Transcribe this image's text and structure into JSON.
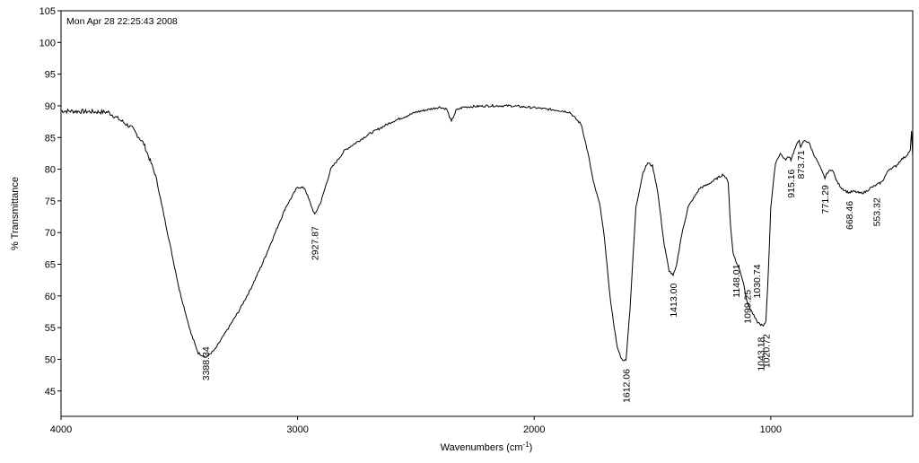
{
  "chart_data": {
    "type": "line",
    "timestamp": "Mon Apr 28 22:25:43 2008",
    "xlabel": "Wavenumbers (cm-1)",
    "xlabel_main": "Wavenumbers (cm",
    "xlabel_sup": "-1",
    "xlabel_end": ")",
    "ylabel": "% Transmittance",
    "xlim": [
      4000,
      400
    ],
    "ylim": [
      41,
      105
    ],
    "x_ticks": [
      4000,
      3000,
      2000,
      1000
    ],
    "y_ticks": [
      105,
      100,
      95,
      90,
      85,
      80,
      75,
      70,
      65,
      60,
      55,
      50,
      45
    ],
    "grid": false,
    "color": "#000000",
    "x": [
      4000,
      3800,
      3700,
      3650,
      3600,
      3550,
      3500,
      3450,
      3420,
      3388.34,
      3350,
      3300,
      3250,
      3200,
      3150,
      3100,
      3050,
      3000,
      2970,
      2950,
      2927.87,
      2900,
      2880,
      2860,
      2800,
      2700,
      2600,
      2500,
      2400,
      2370,
      2350,
      2330,
      2300,
      2200,
      2100,
      2000,
      1900,
      1850,
      1800,
      1770,
      1750,
      1720,
      1700,
      1680,
      1650,
      1630,
      1612.06,
      1595,
      1570,
      1540,
      1520,
      1500,
      1480,
      1450,
      1430,
      1413.0,
      1400,
      1380,
      1350,
      1300,
      1270,
      1250,
      1200,
      1180,
      1170,
      1160,
      1148.01,
      1130,
      1115,
      1099.25,
      1080,
      1060,
      1043.18,
      1030.74,
      1020.72,
      1010,
      1000,
      980,
      960,
      940,
      920,
      915.16,
      900,
      880,
      873.71,
      860,
      840,
      820,
      800,
      780,
      771.29,
      760,
      740,
      720,
      700,
      680,
      668.46,
      650,
      620,
      600,
      580,
      553.32,
      530,
      500,
      470,
      450,
      430,
      410,
      405,
      400
    ],
    "values": [
      89.2,
      89.0,
      86.5,
      84.0,
      79.0,
      70.0,
      61.0,
      54.0,
      51.0,
      50.3,
      51.5,
      54.5,
      57.5,
      61.0,
      65.0,
      69.5,
      74.0,
      77.2,
      77.0,
      75.0,
      72.8,
      75.0,
      77.5,
      80.0,
      83.0,
      85.5,
      87.5,
      89.0,
      89.8,
      89.5,
      87.5,
      89.3,
      89.8,
      90.0,
      90.0,
      89.7,
      89.3,
      89.0,
      87.0,
      82.0,
      78.0,
      74.0,
      68.0,
      60.0,
      52.0,
      50.0,
      49.8,
      58.0,
      74.0,
      79.5,
      81.0,
      80.5,
      77.0,
      68.0,
      64.0,
      63.2,
      64.5,
      69.0,
      74.0,
      77.0,
      77.5,
      78.0,
      79.2,
      78.0,
      71.0,
      67.0,
      65.5,
      64.0,
      62.0,
      59.0,
      57.5,
      56.0,
      55.5,
      55.2,
      56.0,
      64.0,
      74.0,
      81.0,
      82.5,
      81.5,
      82.0,
      81.5,
      83.0,
      84.7,
      83.3,
      84.5,
      84.3,
      82.5,
      81.0,
      79.3,
      78.6,
      79.5,
      80.0,
      78.0,
      77.0,
      76.5,
      76.3,
      76.5,
      76.2,
      76.4,
      77.0,
      77.5,
      78.0,
      80.0,
      80.5,
      81.5,
      82.0,
      83.0,
      86.0,
      82.0
    ],
    "peak_labels": [
      "3388.34",
      "2927.87",
      "1612.06",
      "1413.00",
      "1148.01",
      "1099.25",
      "1030.74",
      "1043.18",
      "1020.72",
      "915.16",
      "873.71",
      "771.29",
      "668.46",
      "553.32"
    ]
  }
}
